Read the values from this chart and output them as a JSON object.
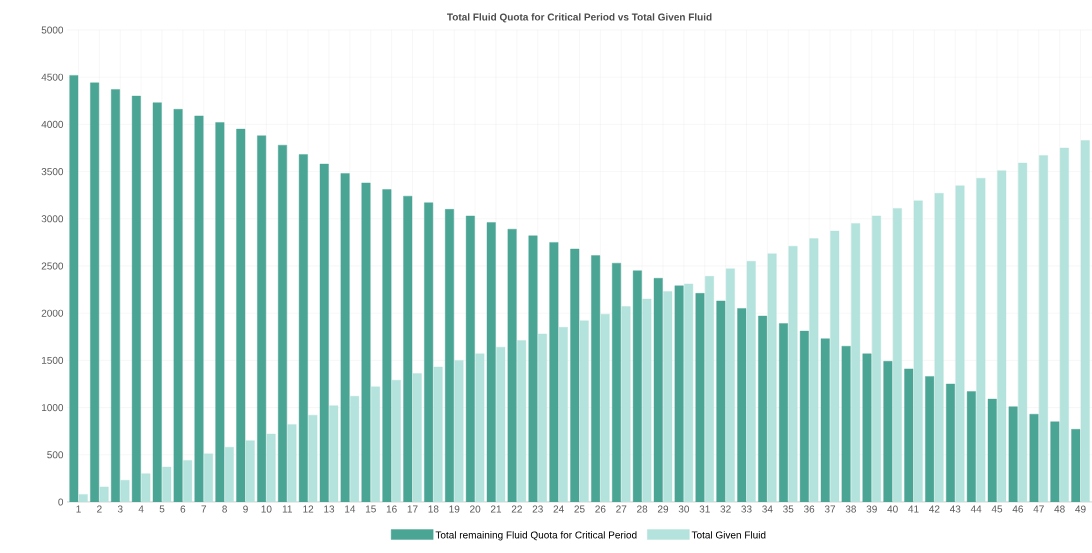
{
  "chart_data": {
    "type": "bar",
    "title": "Total Fluid Quota for Critical Period vs Total Given Fluid",
    "categories": [
      "1",
      "2",
      "3",
      "4",
      "5",
      "6",
      "7",
      "8",
      "9",
      "10",
      "11",
      "12",
      "13",
      "14",
      "15",
      "16",
      "17",
      "18",
      "19",
      "20",
      "21",
      "22",
      "23",
      "24",
      "25",
      "26",
      "27",
      "28",
      "29",
      "30",
      "31",
      "32",
      "33",
      "34",
      "35",
      "36",
      "37",
      "38",
      "39",
      "40",
      "41",
      "42",
      "43",
      "44",
      "45",
      "46",
      "47",
      "48",
      "49"
    ],
    "series": [
      {
        "name": "Total remaining Fluid Quota for Critical Period",
        "color": "#4aa595",
        "values": [
          4520,
          4440,
          4370,
          4300,
          4230,
          4160,
          4090,
          4020,
          3950,
          3880,
          3780,
          3680,
          3580,
          3480,
          3380,
          3310,
          3240,
          3170,
          3100,
          3030,
          2960,
          2890,
          2820,
          2750,
          2680,
          2610,
          2530,
          2450,
          2370,
          2290,
          2210,
          2130,
          2050,
          1970,
          1890,
          1810,
          1730,
          1650,
          1570,
          1490,
          1410,
          1330,
          1250,
          1170,
          1090,
          1010,
          930,
          850,
          770
        ]
      },
      {
        "name": "Total Given Fluid",
        "color": "#b4e2dc",
        "values": [
          80,
          160,
          230,
          300,
          370,
          440,
          510,
          580,
          650,
          720,
          820,
          920,
          1020,
          1120,
          1220,
          1290,
          1360,
          1430,
          1500,
          1570,
          1640,
          1710,
          1780,
          1850,
          1920,
          1990,
          2070,
          2150,
          2230,
          2310,
          2390,
          2470,
          2550,
          2630,
          2710,
          2790,
          2870,
          2950,
          3030,
          3110,
          3190,
          3270,
          3350,
          3430,
          3510,
          3590,
          3670,
          3750,
          3830
        ]
      }
    ],
    "ylim": [
      0,
      5000
    ],
    "yticks": [
      0,
      500,
      1000,
      1500,
      2000,
      2500,
      3000,
      3500,
      4000,
      4500,
      5000
    ],
    "grid": true,
    "legend": "bottom"
  }
}
